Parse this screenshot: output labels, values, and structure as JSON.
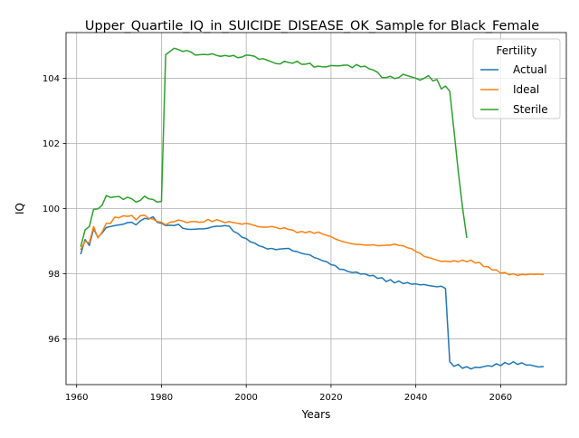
{
  "chart_data": {
    "type": "line",
    "title": "Upper_Quartile_IQ_in_SUICIDE_DISEASE_OK_Sample for Black_Female",
    "xlabel": "Years",
    "ylabel": "IQ",
    "xlim": [
      1957.5,
      2075.5
    ],
    "ylim": [
      94.6,
      105.4
    ],
    "xticks": [
      1960,
      1980,
      2000,
      2020,
      2040,
      2060
    ],
    "yticks": [
      96,
      98,
      100,
      102,
      104
    ],
    "grid": true,
    "legend": {
      "title": "Fertility",
      "position": "top-right"
    },
    "series": [
      {
        "name": "Actual",
        "color": "#1f77b4",
        "points": [
          [
            1961,
            98.62
          ],
          [
            1962,
            99.05
          ],
          [
            1963,
            98.87
          ],
          [
            1964,
            99.38
          ],
          [
            1965,
            99.12
          ],
          [
            1966,
            99.25
          ],
          [
            1967,
            99.42
          ],
          [
            1968,
            99.45
          ],
          [
            1969,
            99.48
          ],
          [
            1970,
            99.5
          ],
          [
            1971,
            99.52
          ],
          [
            1972,
            99.57
          ],
          [
            1973,
            99.58
          ],
          [
            1974,
            99.5
          ],
          [
            1975,
            99.62
          ],
          [
            1976,
            99.7
          ],
          [
            1977,
            99.68
          ],
          [
            1978,
            99.75
          ],
          [
            1979,
            99.58
          ],
          [
            1980,
            99.55
          ],
          [
            1981,
            99.48
          ],
          [
            1982,
            99.49
          ],
          [
            1983,
            99.48
          ],
          [
            1984,
            99.52
          ],
          [
            1985,
            99.4
          ],
          [
            1986,
            99.37
          ],
          [
            1987,
            99.36
          ],
          [
            1988,
            99.37
          ],
          [
            1989,
            99.38
          ],
          [
            1990,
            99.38
          ],
          [
            1991,
            99.4
          ],
          [
            1992,
            99.44
          ],
          [
            1993,
            99.46
          ],
          [
            1994,
            99.46
          ],
          [
            1995,
            99.48
          ],
          [
            1996,
            99.46
          ],
          [
            1997,
            99.3
          ],
          [
            1998,
            99.24
          ],
          [
            1999,
            99.12
          ],
          [
            2000,
            99.08
          ],
          [
            2001,
            98.98
          ],
          [
            2002,
            98.94
          ],
          [
            2003,
            98.86
          ],
          [
            2004,
            98.82
          ],
          [
            2005,
            98.76
          ],
          [
            2006,
            98.78
          ],
          [
            2007,
            98.74
          ],
          [
            2008,
            98.76
          ],
          [
            2009,
            98.77
          ],
          [
            2010,
            98.78
          ],
          [
            2011,
            98.7
          ],
          [
            2012,
            98.68
          ],
          [
            2013,
            98.63
          ],
          [
            2014,
            98.6
          ],
          [
            2015,
            98.58
          ],
          [
            2016,
            98.5
          ],
          [
            2017,
            98.46
          ],
          [
            2018,
            98.4
          ],
          [
            2019,
            98.37
          ],
          [
            2020,
            98.28
          ],
          [
            2021,
            98.25
          ],
          [
            2022,
            98.14
          ],
          [
            2023,
            98.13
          ],
          [
            2024,
            98.07
          ],
          [
            2025,
            98.04
          ],
          [
            2026,
            98.05
          ],
          [
            2027,
            97.99
          ],
          [
            2028,
            98.0
          ],
          [
            2029,
            97.94
          ],
          [
            2030,
            97.95
          ],
          [
            2031,
            97.86
          ],
          [
            2032,
            97.88
          ],
          [
            2033,
            97.76
          ],
          [
            2034,
            97.82
          ],
          [
            2035,
            97.72
          ],
          [
            2036,
            97.78
          ],
          [
            2037,
            97.7
          ],
          [
            2038,
            97.73
          ],
          [
            2039,
            97.68
          ],
          [
            2040,
            97.69
          ],
          [
            2041,
            97.66
          ],
          [
            2042,
            97.67
          ],
          [
            2043,
            97.64
          ],
          [
            2044,
            97.62
          ],
          [
            2045,
            97.6
          ],
          [
            2046,
            97.62
          ],
          [
            2047,
            97.55
          ],
          [
            2048,
            95.3
          ],
          [
            2049,
            95.16
          ],
          [
            2050,
            95.22
          ],
          [
            2051,
            95.1
          ],
          [
            2052,
            95.15
          ],
          [
            2053,
            95.08
          ],
          [
            2054,
            95.13
          ],
          [
            2055,
            95.12
          ],
          [
            2056,
            95.15
          ],
          [
            2057,
            95.18
          ],
          [
            2058,
            95.16
          ],
          [
            2059,
            95.24
          ],
          [
            2060,
            95.18
          ],
          [
            2061,
            95.28
          ],
          [
            2062,
            95.22
          ],
          [
            2063,
            95.3
          ],
          [
            2064,
            95.22
          ],
          [
            2065,
            95.27
          ],
          [
            2066,
            95.2
          ],
          [
            2067,
            95.2
          ],
          [
            2068,
            95.17
          ],
          [
            2069,
            95.14
          ],
          [
            2070,
            95.15
          ]
        ]
      },
      {
        "name": "Ideal",
        "color": "#ff7f0e",
        "points": [
          [
            1961,
            98.75
          ],
          [
            1962,
            99.0
          ],
          [
            1963,
            98.95
          ],
          [
            1964,
            99.45
          ],
          [
            1965,
            99.1
          ],
          [
            1966,
            99.28
          ],
          [
            1967,
            99.55
          ],
          [
            1968,
            99.55
          ],
          [
            1969,
            99.74
          ],
          [
            1970,
            99.72
          ],
          [
            1971,
            99.78
          ],
          [
            1972,
            99.76
          ],
          [
            1973,
            99.79
          ],
          [
            1974,
            99.65
          ],
          [
            1975,
            99.78
          ],
          [
            1976,
            99.8
          ],
          [
            1977,
            99.7
          ],
          [
            1978,
            99.68
          ],
          [
            1979,
            99.6
          ],
          [
            1980,
            99.58
          ],
          [
            1981,
            99.5
          ],
          [
            1982,
            99.58
          ],
          [
            1983,
            99.6
          ],
          [
            1984,
            99.65
          ],
          [
            1985,
            99.62
          ],
          [
            1986,
            99.57
          ],
          [
            1987,
            99.6
          ],
          [
            1988,
            99.6
          ],
          [
            1989,
            99.58
          ],
          [
            1990,
            99.59
          ],
          [
            1991,
            99.67
          ],
          [
            1992,
            99.6
          ],
          [
            1993,
            99.66
          ],
          [
            1994,
            99.62
          ],
          [
            1995,
            99.57
          ],
          [
            1996,
            99.6
          ],
          [
            1997,
            99.57
          ],
          [
            1998,
            99.55
          ],
          [
            1999,
            99.52
          ],
          [
            2000,
            99.55
          ],
          [
            2001,
            99.52
          ],
          [
            2002,
            99.48
          ],
          [
            2003,
            99.44
          ],
          [
            2004,
            99.43
          ],
          [
            2005,
            99.43
          ],
          [
            2006,
            99.45
          ],
          [
            2007,
            99.42
          ],
          [
            2008,
            99.38
          ],
          [
            2009,
            99.41
          ],
          [
            2010,
            99.36
          ],
          [
            2011,
            99.34
          ],
          [
            2012,
            99.26
          ],
          [
            2013,
            99.3
          ],
          [
            2014,
            99.26
          ],
          [
            2015,
            99.3
          ],
          [
            2016,
            99.24
          ],
          [
            2017,
            99.28
          ],
          [
            2018,
            99.22
          ],
          [
            2019,
            99.18
          ],
          [
            2020,
            99.14
          ],
          [
            2021,
            99.07
          ],
          [
            2022,
            99.02
          ],
          [
            2023,
            98.98
          ],
          [
            2024,
            98.95
          ],
          [
            2025,
            98.92
          ],
          [
            2026,
            98.9
          ],
          [
            2027,
            98.9
          ],
          [
            2028,
            98.88
          ],
          [
            2029,
            98.88
          ],
          [
            2030,
            98.89
          ],
          [
            2031,
            98.86
          ],
          [
            2032,
            98.87
          ],
          [
            2033,
            98.88
          ],
          [
            2034,
            98.88
          ],
          [
            2035,
            98.91
          ],
          [
            2036,
            98.87
          ],
          [
            2037,
            98.86
          ],
          [
            2038,
            98.8
          ],
          [
            2039,
            98.77
          ],
          [
            2040,
            98.68
          ],
          [
            2041,
            98.63
          ],
          [
            2042,
            98.53
          ],
          [
            2043,
            98.5
          ],
          [
            2044,
            98.46
          ],
          [
            2045,
            98.42
          ],
          [
            2046,
            98.38
          ],
          [
            2047,
            98.39
          ],
          [
            2048,
            98.37
          ],
          [
            2049,
            98.4
          ],
          [
            2050,
            98.37
          ],
          [
            2051,
            98.42
          ],
          [
            2052,
            98.37
          ],
          [
            2053,
            98.42
          ],
          [
            2054,
            98.33
          ],
          [
            2055,
            98.35
          ],
          [
            2056,
            98.22
          ],
          [
            2057,
            98.22
          ],
          [
            2058,
            98.12
          ],
          [
            2059,
            98.12
          ],
          [
            2060,
            98.02
          ],
          [
            2061,
            98.04
          ],
          [
            2062,
            97.97
          ],
          [
            2063,
            98.0
          ],
          [
            2064,
            97.95
          ],
          [
            2065,
            97.98
          ],
          [
            2066,
            97.97
          ],
          [
            2067,
            97.99
          ],
          [
            2068,
            97.98
          ],
          [
            2069,
            97.99
          ],
          [
            2070,
            97.98
          ]
        ]
      },
      {
        "name": "Sterile",
        "color": "#2ca02c",
        "points": [
          [
            1961,
            98.85
          ],
          [
            1962,
            99.35
          ],
          [
            1963,
            99.45
          ],
          [
            1964,
            99.98
          ],
          [
            1965,
            99.99
          ],
          [
            1966,
            100.1
          ],
          [
            1967,
            100.4
          ],
          [
            1968,
            100.34
          ],
          [
            1969,
            100.36
          ],
          [
            1970,
            100.37
          ],
          [
            1971,
            100.28
          ],
          [
            1972,
            100.35
          ],
          [
            1973,
            100.3
          ],
          [
            1974,
            100.2
          ],
          [
            1975,
            100.25
          ],
          [
            1976,
            100.38
          ],
          [
            1977,
            100.3
          ],
          [
            1978,
            100.28
          ],
          [
            1979,
            100.2
          ],
          [
            1980,
            100.22
          ],
          [
            1981,
            104.72
          ],
          [
            1982,
            104.82
          ],
          [
            1983,
            104.92
          ],
          [
            1984,
            104.88
          ],
          [
            1985,
            104.82
          ],
          [
            1986,
            104.85
          ],
          [
            1987,
            104.8
          ],
          [
            1988,
            104.71
          ],
          [
            1989,
            104.72
          ],
          [
            1990,
            104.73
          ],
          [
            1991,
            104.72
          ],
          [
            1992,
            104.75
          ],
          [
            1993,
            104.7
          ],
          [
            1994,
            104.67
          ],
          [
            1995,
            104.7
          ],
          [
            1996,
            104.67
          ],
          [
            1997,
            104.7
          ],
          [
            1998,
            104.63
          ],
          [
            1999,
            104.65
          ],
          [
            2000,
            104.71
          ],
          [
            2001,
            104.7
          ],
          [
            2002,
            104.67
          ],
          [
            2003,
            104.58
          ],
          [
            2004,
            104.6
          ],
          [
            2005,
            104.55
          ],
          [
            2006,
            104.5
          ],
          [
            2007,
            104.45
          ],
          [
            2008,
            104.44
          ],
          [
            2009,
            104.52
          ],
          [
            2010,
            104.48
          ],
          [
            2011,
            104.46
          ],
          [
            2012,
            104.52
          ],
          [
            2013,
            104.43
          ],
          [
            2014,
            104.43
          ],
          [
            2015,
            104.46
          ],
          [
            2016,
            104.34
          ],
          [
            2017,
            104.37
          ],
          [
            2018,
            104.35
          ],
          [
            2019,
            104.35
          ],
          [
            2020,
            104.39
          ],
          [
            2021,
            104.38
          ],
          [
            2022,
            104.38
          ],
          [
            2023,
            104.4
          ],
          [
            2024,
            104.4
          ],
          [
            2025,
            104.32
          ],
          [
            2026,
            104.42
          ],
          [
            2027,
            104.35
          ],
          [
            2028,
            104.37
          ],
          [
            2029,
            104.29
          ],
          [
            2030,
            104.25
          ],
          [
            2031,
            104.18
          ],
          [
            2032,
            104.02
          ],
          [
            2033,
            104.02
          ],
          [
            2034,
            104.06
          ],
          [
            2035,
            103.99
          ],
          [
            2036,
            104.02
          ],
          [
            2037,
            104.12
          ],
          [
            2038,
            104.08
          ],
          [
            2039,
            104.04
          ],
          [
            2040,
            104.0
          ],
          [
            2041,
            103.94
          ],
          [
            2042,
            104.0
          ],
          [
            2043,
            104.08
          ],
          [
            2044,
            103.92
          ],
          [
            2045,
            103.96
          ],
          [
            2046,
            103.67
          ],
          [
            2047,
            103.76
          ],
          [
            2048,
            103.6
          ],
          [
            2049,
            102.4
          ],
          [
            2050,
            101.15
          ],
          [
            2051,
            100.05
          ],
          [
            2052,
            99.12
          ]
        ]
      }
    ]
  }
}
